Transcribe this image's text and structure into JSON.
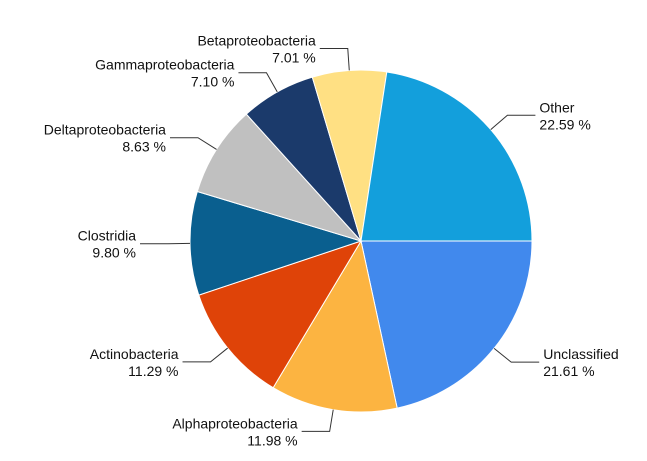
{
  "chart_data": {
    "type": "pie",
    "categories": [
      "Unclassified",
      "Alphaproteobacteria",
      "Actinobacteria",
      "Clostridia",
      "Deltaproteobacteria",
      "Gammaproteobacteria",
      "Betaproteobacteria",
      "Other"
    ],
    "values": [
      21.61,
      11.98,
      11.29,
      9.8,
      8.63,
      7.1,
      7.01,
      22.59
    ],
    "value_labels": [
      "21.61 %",
      "11.98 %",
      "11.29 %",
      "9.80 %",
      "8.63 %",
      "7.10 %",
      "7.01 %",
      "22.59 %"
    ],
    "colors": [
      "#4189ed",
      "#fcb441",
      "#df4308",
      "#0a5f8f",
      "#c0c0c0",
      "#1b3a6b",
      "#ffe083",
      "#139fdc"
    ]
  }
}
